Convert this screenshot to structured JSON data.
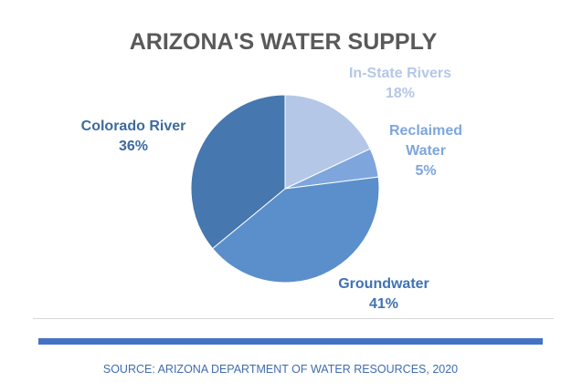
{
  "chart_data": {
    "type": "pie",
    "title": "ARIZONA'S WATER SUPPLY",
    "slices": [
      {
        "label": "In-State Rivers",
        "value": 18,
        "value_label": "18%",
        "color": "#b4c7e7",
        "label_color": "#b4c7e7"
      },
      {
        "label": "Reclaimed Water",
        "label_lines": [
          "Reclaimed",
          "Water"
        ],
        "value": 5,
        "value_label": "5%",
        "color": "#7ea6dc",
        "label_color": "#7ea6dc"
      },
      {
        "label": "Groundwater",
        "value": 41,
        "value_label": "41%",
        "color": "#5b8fcb",
        "label_color": "#3f72b5"
      },
      {
        "label": "Colorado River",
        "value": 36,
        "value_label": "36%",
        "color": "#4677ae",
        "label_color": "#3d6aa0"
      }
    ]
  },
  "footer": {
    "source": "SOURCE: ARIZONA DEPARTMENT OF WATER RESOURCES, 2020"
  }
}
